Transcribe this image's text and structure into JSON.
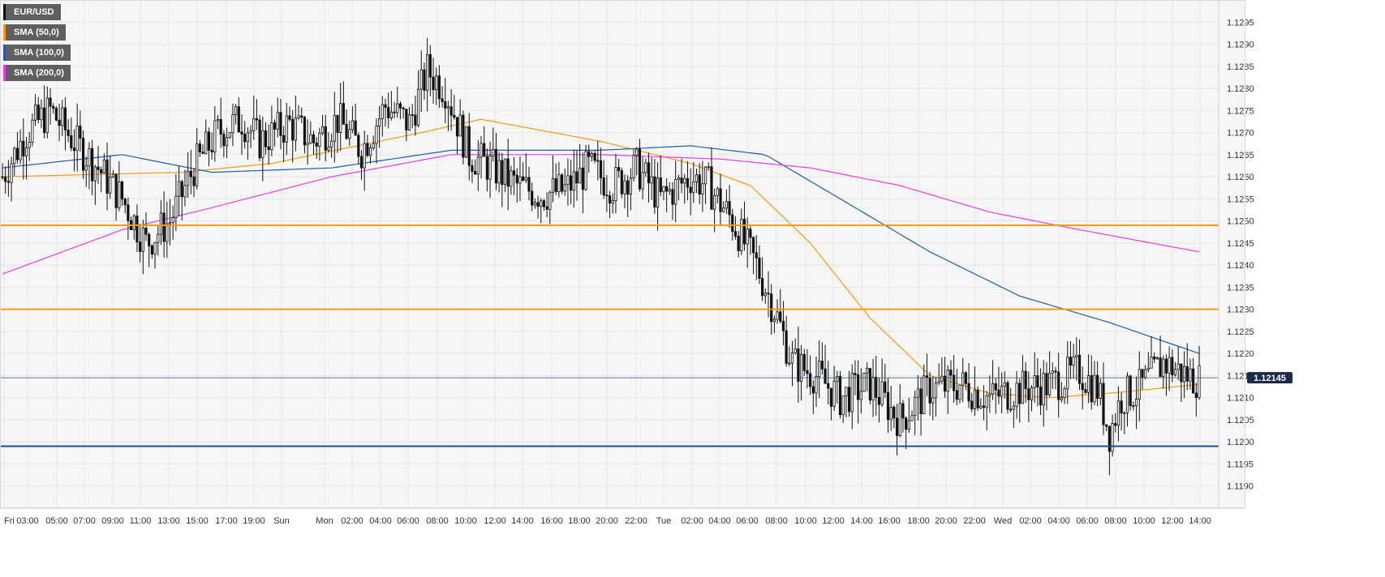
{
  "legend": [
    {
      "label": "EUR/USD",
      "color": "#111111"
    },
    {
      "label": "SMA (50,0)",
      "color": "#f39c12"
    },
    {
      "label": "SMA (100,0)",
      "color": "#1f5fa8"
    },
    {
      "label": "SMA (200,0)",
      "color": "#e83ee8"
    }
  ],
  "price_label": "1.12145",
  "chart_data": {
    "type": "candlestick",
    "instrument": "EUR/USD",
    "ylim": [
      1.1185,
      1.13
    ],
    "y_ticks": [
      "1.1190",
      "1.1195",
      "1.1200",
      "1.1205",
      "1.1210",
      "1.1215",
      "1.1220",
      "1.1225",
      "1.1230",
      "1.1235",
      "1.1240",
      "1.1245",
      "1.1250",
      "1.1255",
      "1.1260",
      "1.1265",
      "1.1270",
      "1.1275",
      "1.1280",
      "1.1285",
      "1.1290",
      "1.1295"
    ],
    "x_ticks": [
      "Fri",
      "03:00",
      "05:00",
      "07:00",
      "09:00",
      "11:00",
      "13:00",
      "15:00",
      "17:00",
      "19:00",
      "Sun",
      "Mon",
      "02:00",
      "04:00",
      "06:00",
      "08:00",
      "10:00",
      "12:00",
      "14:00",
      "16:00",
      "18:00",
      "20:00",
      "22:00",
      "Tue",
      "02:00",
      "04:00",
      "06:00",
      "08:00",
      "10:00",
      "12:00",
      "14:00",
      "16:00",
      "18:00",
      "20:00",
      "22:00",
      "Wed",
      "02:00",
      "04:00",
      "06:00",
      "08:00",
      "10:00",
      "12:00",
      "14:00"
    ],
    "horizontal_levels": [
      {
        "value": 1.1249,
        "color": "#f39c12"
      },
      {
        "value": 1.123,
        "color": "#f39c12"
      },
      {
        "value": 1.1199,
        "color": "#1f4a9e"
      }
    ],
    "current_price": 1.12145,
    "ohlc_anchors": [
      [
        0,
        1.126
      ],
      [
        8,
        1.127
      ],
      [
        16,
        1.1275
      ],
      [
        24,
        1.1268
      ],
      [
        32,
        1.1262
      ],
      [
        40,
        1.1255
      ],
      [
        48,
        1.1245
      ],
      [
        56,
        1.125
      ],
      [
        64,
        1.1262
      ],
      [
        72,
        1.127
      ],
      [
        80,
        1.1273
      ],
      [
        86,
        1.1268
      ],
      [
        96,
        1.1272
      ],
      [
        104,
        1.1268
      ],
      [
        112,
        1.1273
      ],
      [
        120,
        1.1266
      ],
      [
        128,
        1.1276
      ],
      [
        136,
        1.1272
      ],
      [
        142,
        1.1284
      ],
      [
        148,
        1.128
      ],
      [
        156,
        1.1265
      ],
      [
        164,
        1.1262
      ],
      [
        172,
        1.1258
      ],
      [
        180,
        1.1256
      ],
      [
        188,
        1.1257
      ],
      [
        196,
        1.1262
      ],
      [
        204,
        1.1258
      ],
      [
        212,
        1.1262
      ],
      [
        220,
        1.1255
      ],
      [
        230,
        1.126
      ],
      [
        236,
        1.1258
      ],
      [
        244,
        1.125
      ],
      [
        252,
        1.124
      ],
      [
        258,
        1.123
      ],
      [
        264,
        1.1218
      ],
      [
        272,
        1.1215
      ],
      [
        280,
        1.121
      ],
      [
        290,
        1.1213
      ],
      [
        300,
        1.1205
      ],
      [
        310,
        1.1212
      ],
      [
        320,
        1.1213
      ],
      [
        330,
        1.121
      ],
      [
        340,
        1.1212
      ],
      [
        350,
        1.1213
      ],
      [
        360,
        1.1216
      ],
      [
        366,
        1.1212
      ],
      [
        370,
        1.1202
      ],
      [
        374,
        1.121
      ],
      [
        380,
        1.1212
      ],
      [
        388,
        1.1218
      ],
      [
        396,
        1.1215
      ],
      [
        400,
        1.1214
      ]
    ],
    "sma50_points": [
      [
        0,
        1.126
      ],
      [
        60,
        1.1261
      ],
      [
        90,
        1.1263
      ],
      [
        140,
        1.127
      ],
      [
        160,
        1.1273
      ],
      [
        200,
        1.1268
      ],
      [
        230,
        1.1263
      ],
      [
        250,
        1.1258
      ],
      [
        270,
        1.1245
      ],
      [
        290,
        1.1228
      ],
      [
        310,
        1.1215
      ],
      [
        330,
        1.1211
      ],
      [
        350,
        1.121
      ],
      [
        370,
        1.1211
      ],
      [
        400,
        1.1213
      ]
    ],
    "sma100_points": [
      [
        0,
        1.1262
      ],
      [
        40,
        1.1265
      ],
      [
        70,
        1.1261
      ],
      [
        110,
        1.1262
      ],
      [
        150,
        1.1266
      ],
      [
        200,
        1.1266
      ],
      [
        230,
        1.1267
      ],
      [
        255,
        1.1265
      ],
      [
        280,
        1.1255
      ],
      [
        310,
        1.1243
      ],
      [
        340,
        1.1233
      ],
      [
        370,
        1.1227
      ],
      [
        400,
        1.122
      ]
    ],
    "sma200_points": [
      [
        0,
        1.1238
      ],
      [
        40,
        1.1248
      ],
      [
        70,
        1.1253
      ],
      [
        110,
        1.126
      ],
      [
        150,
        1.1265
      ],
      [
        200,
        1.1265
      ],
      [
        240,
        1.1264
      ],
      [
        270,
        1.1262
      ],
      [
        300,
        1.1258
      ],
      [
        330,
        1.1252
      ],
      [
        360,
        1.1248
      ],
      [
        400,
        1.1243
      ]
    ],
    "grid": true
  }
}
